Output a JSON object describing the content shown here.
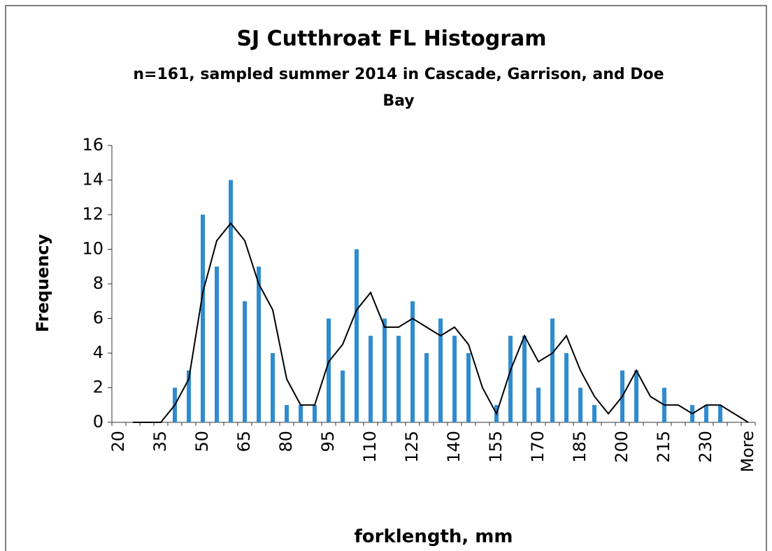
{
  "chart_data": {
    "type": "bar",
    "title": "SJ Cutthroat FL Histogram",
    "subtitle": "n=161, sampled summer 2014 in Cascade, Garrison, and Doe Bay",
    "x_label": "forklength, mm",
    "y_label": "Frequency",
    "categories": [
      "20",
      null,
      null,
      "35",
      null,
      null,
      "50",
      null,
      null,
      "65",
      null,
      null,
      "80",
      null,
      null,
      "95",
      null,
      null,
      "110",
      null,
      null,
      "125",
      null,
      null,
      "140",
      null,
      null,
      "155",
      null,
      null,
      "170",
      null,
      null,
      "185",
      null,
      null,
      "200",
      null,
      null,
      "215",
      null,
      null,
      "230",
      null,
      null,
      "More"
    ],
    "series": [
      {
        "type": "bar",
        "color": "#2e8ccf",
        "values": [
          0,
          0,
          0,
          0,
          2,
          3,
          12,
          9,
          14,
          7,
          9,
          4,
          1,
          1,
          1,
          6,
          3,
          10,
          5,
          6,
          5,
          7,
          4,
          6,
          5,
          4,
          0,
          1,
          5,
          5,
          2,
          6,
          4,
          2,
          1,
          0,
          3,
          3,
          0,
          2,
          0,
          1,
          1,
          1,
          0,
          0
        ]
      },
      {
        "type": "line",
        "color": "#000000",
        "values": [
          null,
          0,
          0,
          0,
          1,
          2.5,
          7.5,
          10.5,
          11.5,
          10.5,
          8,
          6.5,
          2.5,
          1,
          1,
          3.5,
          4.5,
          6.5,
          7.5,
          5.5,
          5.5,
          6,
          5.5,
          5,
          5.5,
          4.5,
          2,
          0.5,
          3,
          5,
          3.5,
          4,
          5,
          3,
          1.5,
          0.5,
          1.5,
          3,
          1.5,
          1,
          1,
          0.5,
          1,
          1,
          0.5,
          0
        ]
      }
    ],
    "ylim": [
      0,
      16
    ],
    "yticks": [
      0,
      2,
      4,
      6,
      8,
      10,
      12,
      14,
      16
    ],
    "grid": false
  }
}
